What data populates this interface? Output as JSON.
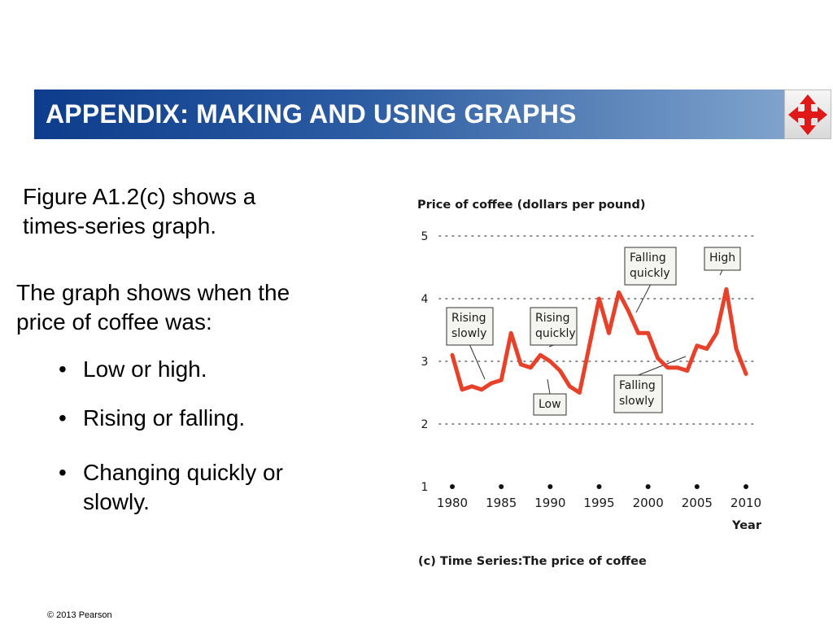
{
  "slide": {
    "title": "APPENDIX: MAKING AND USING GRAPHS",
    "intro": "Figure A1.2(c) shows a times-series graph.",
    "lead": "The graph shows when the price of coffee was:",
    "bullets": [
      "Low or high.",
      "Rising or falling.",
      "Changing quickly or slowly."
    ],
    "bullet_glyph": "•",
    "copyright": "© 2013 Pearson",
    "nav_icon": "four-way-arrow-icon"
  },
  "chart_data": {
    "type": "line",
    "ylabel": "Price of coffee (dollars per pound)",
    "xlabel": "Year",
    "caption": "(c)  Time Series:The price of coffee",
    "xlim": [
      1980,
      2010
    ],
    "ylim": [
      1,
      5
    ],
    "y_ticks": [
      1,
      2,
      3,
      4,
      5
    ],
    "x_ticks": [
      1980,
      1985,
      1990,
      1995,
      2000,
      2005,
      2010
    ],
    "grid": "dotted horizontal lines at 2, 3, 4, 5",
    "line_color": "#e8412a",
    "series": [
      {
        "x": [
          1980,
          1981,
          1982,
          1983,
          1984,
          1985,
          1986,
          1987,
          1988,
          1989,
          1990,
          1991,
          1992,
          1993,
          1994,
          1995,
          1996,
          1997,
          1998,
          1999,
          2000,
          2001,
          2002,
          2003,
          2004,
          2005,
          2006,
          2007,
          2008,
          2009,
          2010
        ],
        "y": [
          3.1,
          2.55,
          2.6,
          2.55,
          2.65,
          2.7,
          3.45,
          2.95,
          2.9,
          3.1,
          3.0,
          2.85,
          2.6,
          2.5,
          3.25,
          4.0,
          3.45,
          4.1,
          3.8,
          3.45,
          3.45,
          3.05,
          2.9,
          2.9,
          2.85,
          3.25,
          3.2,
          3.45,
          4.15,
          3.2,
          2.8
        ]
      }
    ],
    "annotations": [
      {
        "lines": [
          "Rising",
          "slowly"
        ],
        "year": 1983
      },
      {
        "lines": [
          "Low"
        ],
        "year": 1993
      },
      {
        "lines": [
          "Rising",
          "quickly"
        ],
        "year": 1994
      },
      {
        "lines": [
          "Falling",
          "quickly"
        ],
        "year": 1998
      },
      {
        "lines": [
          "Falling",
          "slowly"
        ],
        "year": 2001
      },
      {
        "lines": [
          "High"
        ],
        "year": 2008
      }
    ]
  }
}
